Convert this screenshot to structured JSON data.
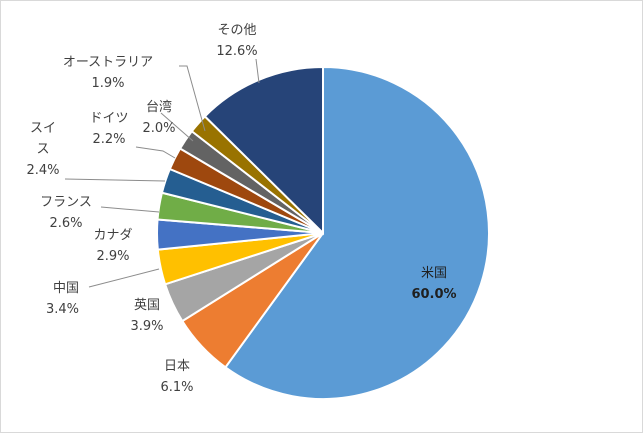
{
  "chart_data": {
    "type": "pie",
    "title": "",
    "slices": [
      {
        "label": "米国",
        "value": 60.0,
        "pct_text": "60.0%",
        "color": "#5b9bd5"
      },
      {
        "label": "日本",
        "value": 6.1,
        "pct_text": "6.1%",
        "color": "#ed7d31"
      },
      {
        "label": "英国",
        "value": 3.9,
        "pct_text": "3.9%",
        "color": "#a5a5a5"
      },
      {
        "label": "中国",
        "value": 3.4,
        "pct_text": "3.4%",
        "color": "#ffc000"
      },
      {
        "label": "カナダ",
        "value": 2.9,
        "pct_text": "2.9%",
        "color": "#4472c4"
      },
      {
        "label": "フランス",
        "value": 2.6,
        "pct_text": "2.6%",
        "color": "#70ad47"
      },
      {
        "label": "スイス",
        "value": 2.4,
        "pct_text": "2.4%",
        "color": "#255e91"
      },
      {
        "label": "ドイツ",
        "value": 2.2,
        "pct_text": "2.2%",
        "color": "#9e480e"
      },
      {
        "label": "台湾",
        "value": 2.0,
        "pct_text": "2.0%",
        "color": "#636363"
      },
      {
        "label": "オーストラリア",
        "value": 1.9,
        "pct_text": "1.9%",
        "color": "#997300"
      },
      {
        "label": "その他",
        "value": 12.6,
        "pct_text": "12.6%",
        "color": "#264478"
      }
    ],
    "legend": "none"
  }
}
